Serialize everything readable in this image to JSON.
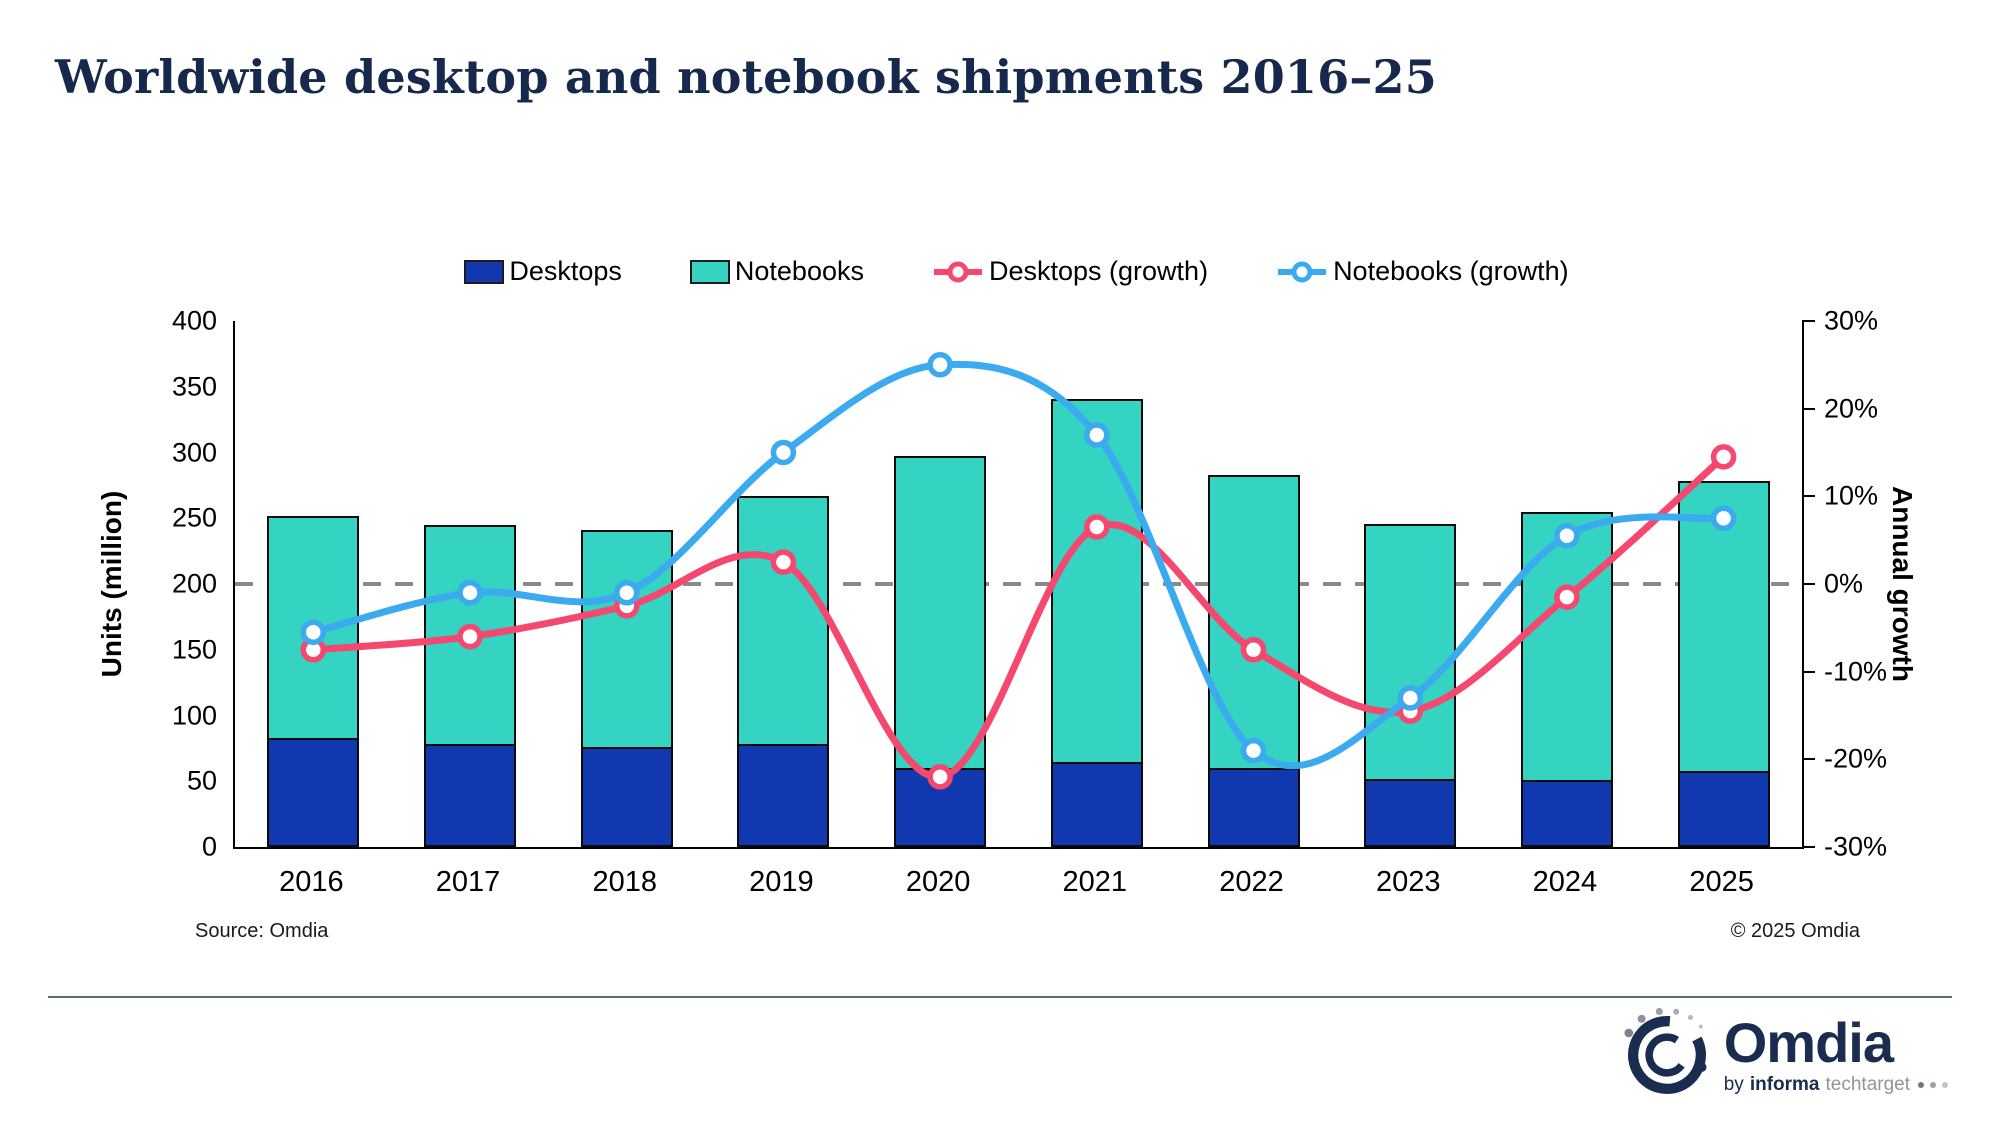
{
  "title": "Worldwide desktop and notebook shipments 2016–25",
  "footer": {
    "source": "Source: Omdia",
    "copyright": "© 2025 Omdia"
  },
  "logo": {
    "name": "Omdia",
    "byline_by": "by",
    "byline_informa": "informa",
    "byline_techtarget": "techtarget"
  },
  "colors": {
    "title_navy": "#16294D",
    "logo_navy": "#1A2C50",
    "logo_gray": "#8F969E",
    "axis_black": "#000000",
    "reference_gray": "#8A8A8A",
    "divider_gray": "#5D6B7A",
    "desktops_bar": "#1138AE",
    "notebooks_bar": "#35D3C2",
    "desktops_growth_line": "#F4486F",
    "notebooks_growth_line": "#3BAAEF"
  },
  "chart_data": {
    "type": "combo",
    "subtype": "stacked-bars-with-growth-lines",
    "categories": [
      "2016",
      "2017",
      "2018",
      "2019",
      "2020",
      "2021",
      "2022",
      "2023",
      "2024",
      "2025"
    ],
    "series": [
      {
        "name": "Desktops",
        "type": "bar",
        "stacked": true,
        "axis": "left",
        "color": "#1138AE",
        "values": [
          83,
          78,
          76,
          78,
          60,
          65,
          60,
          52,
          51,
          58
        ]
      },
      {
        "name": "Notebooks",
        "type": "bar",
        "stacked": true,
        "axis": "left",
        "color": "#35D3C2",
        "values": [
          169,
          167,
          165,
          189,
          237,
          276,
          223,
          194,
          204,
          220
        ]
      },
      {
        "name": "Desktops (growth)",
        "type": "line",
        "axis": "right",
        "unit": "%",
        "color": "#F4486F",
        "values": [
          -7.5,
          -6,
          -2.5,
          2.5,
          -22,
          6.5,
          -7.5,
          -14.5,
          -1.5,
          14.5
        ]
      },
      {
        "name": "Notebooks (growth)",
        "type": "line",
        "axis": "right",
        "unit": "%",
        "color": "#3BAAEF",
        "values": [
          -5.5,
          -1,
          -1,
          15,
          25,
          17,
          -19,
          -13,
          5.5,
          7.5
        ]
      }
    ],
    "stacked_totals": [
      252,
      245,
      241,
      267,
      297,
      341,
      283,
      246,
      255,
      278
    ],
    "left_axis": {
      "label": "Units (million)",
      "min": 0,
      "max": 400,
      "step": 50,
      "ticks": [
        "0",
        "50",
        "100",
        "150",
        "200",
        "250",
        "300",
        "350",
        "400"
      ]
    },
    "right_axis": {
      "label": "Annual growth",
      "min": -30,
      "max": 30,
      "step": 10,
      "ticks": [
        "-30%",
        "-20%",
        "-10%",
        "0%",
        "10%",
        "20%",
        "30%"
      ]
    },
    "reference_line": {
      "axis": "right",
      "value": 0,
      "style": "dashed"
    },
    "legend_position": "top-center",
    "grid": "off"
  }
}
